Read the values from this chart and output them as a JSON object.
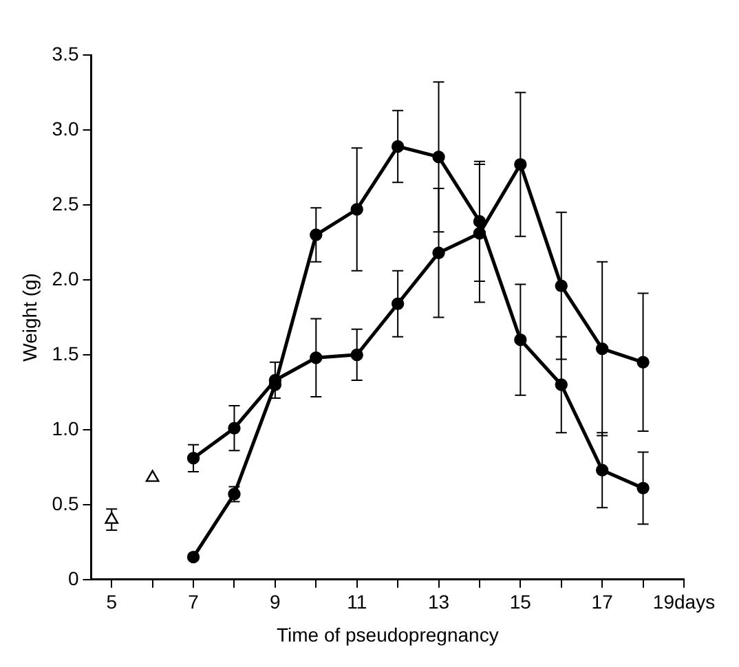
{
  "chart_data": {
    "type": "line",
    "xlabel": "Time of pseudopregnancy",
    "ylabel": "Weight (g)",
    "xlim": [
      4.5,
      19
    ],
    "xticks": [
      {
        "value": 5,
        "label": "5"
      },
      {
        "value": 6,
        "label": null
      },
      {
        "value": 7,
        "label": "7"
      },
      {
        "value": 8,
        "label": null
      },
      {
        "value": 9,
        "label": "9"
      },
      {
        "value": 10,
        "label": null
      },
      {
        "value": 11,
        "label": "11"
      },
      {
        "value": 12,
        "label": null
      },
      {
        "value": 13,
        "label": "13"
      },
      {
        "value": 14,
        "label": null
      },
      {
        "value": 15,
        "label": "15"
      },
      {
        "value": 16,
        "label": null
      },
      {
        "value": 17,
        "label": "17"
      },
      {
        "value": 18,
        "label": null
      },
      {
        "value": 19,
        "label": "19days"
      }
    ],
    "ylim": [
      0,
      3.5
    ],
    "yticks": [
      0,
      {
        "value": 0.5,
        "label": "0.5"
      },
      {
        "value": 1,
        "label": "1.0"
      },
      {
        "value": 1.5,
        "label": "1.5"
      },
      {
        "value": 2,
        "label": "2.0"
      },
      {
        "value": 2.5,
        "label": "2.5"
      },
      {
        "value": 3,
        "label": "3.0"
      },
      {
        "value": 3.5,
        "label": "3.5"
      }
    ],
    "grid": false,
    "legend": false,
    "line_style": "solid",
    "series": [
      {
        "marker": "circle",
        "color": "#000000",
        "x": [
          7,
          8,
          9,
          10,
          11,
          12,
          13,
          14,
          15,
          16,
          17,
          18
        ],
        "values": [
          0.81,
          1.01,
          1.33,
          1.48,
          1.5,
          1.84,
          2.18,
          2.31,
          2.77,
          1.96,
          1.54,
          1.45
        ],
        "errors": [
          0.09,
          0.15,
          0.12,
          0.26,
          0.17,
          0.22,
          0.43,
          0.46,
          0.48,
          0.49,
          0.58,
          0.46
        ]
      },
      {
        "marker": "circle",
        "color": "#000000",
        "x": [
          7,
          8,
          9,
          10,
          11,
          12,
          13,
          14,
          15,
          16,
          17,
          18
        ],
        "values": [
          0.15,
          0.57,
          1.3,
          2.3,
          2.47,
          2.89,
          2.82,
          2.39,
          1.6,
          1.3,
          0.73,
          0.61
        ],
        "errors": [
          null,
          0.05,
          null,
          0.18,
          0.41,
          0.24,
          0.5,
          0.4,
          0.37,
          0.32,
          0.25,
          0.24
        ]
      },
      {
        "type": "scatter",
        "marker": "triangle",
        "color": "#000000",
        "x": [
          5,
          6
        ],
        "values": [
          0.4,
          0.68
        ],
        "errors": [
          0.07,
          null
        ]
      }
    ]
  }
}
